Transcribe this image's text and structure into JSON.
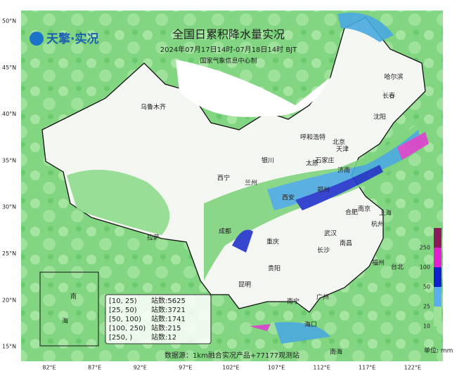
{
  "header": {
    "logo": "天擎·实况",
    "title": "全国日累积降水量实况",
    "subtitle": "2024年07月17日14时-07月18日14时 BJT",
    "producer": "国家气象信息中心制"
  },
  "lat_labels": [
    "50°N",
    "45°N",
    "40°N",
    "35°N",
    "30°N",
    "25°N",
    "20°N",
    "15°N"
  ],
  "lon_labels": [
    "82°E",
    "87°E",
    "92°E",
    "97°E",
    "102°E",
    "107°E",
    "112°E",
    "117°E",
    "122°E"
  ],
  "cities": [
    "乌鲁木齐",
    "哈尔滨",
    "长春",
    "沈阳",
    "呼和浩特",
    "北京",
    "天津",
    "石家庄",
    "太原",
    "济南",
    "银川",
    "西宁",
    "兰州",
    "郑州",
    "西安",
    "合肥",
    "南京",
    "上海",
    "杭州",
    "武汉",
    "拉萨",
    "成都",
    "重庆",
    "长沙",
    "南昌",
    "福州",
    "台北",
    "贵阳",
    "昆明",
    "南宁",
    "广州",
    "海口",
    "南海"
  ],
  "inset": {
    "labels": [
      "南",
      "海"
    ]
  },
  "legend": {
    "station_label": "站数:",
    "rows": [
      {
        "range": "[10, 25)",
        "count": 5625
      },
      {
        "range": "[25, 50)",
        "count": 3721
      },
      {
        "range": "[50, 100)",
        "count": 1741
      },
      {
        "range": "[100, 250)",
        "count": 215
      },
      {
        "range": "[250, )",
        "count": 12
      }
    ]
  },
  "colorbar": {
    "labels": [
      "250",
      "100",
      "50",
      "25",
      "10"
    ],
    "unit": "单位: mm"
  },
  "source": "数据源：1km融合实况产品+77177观测站"
}
